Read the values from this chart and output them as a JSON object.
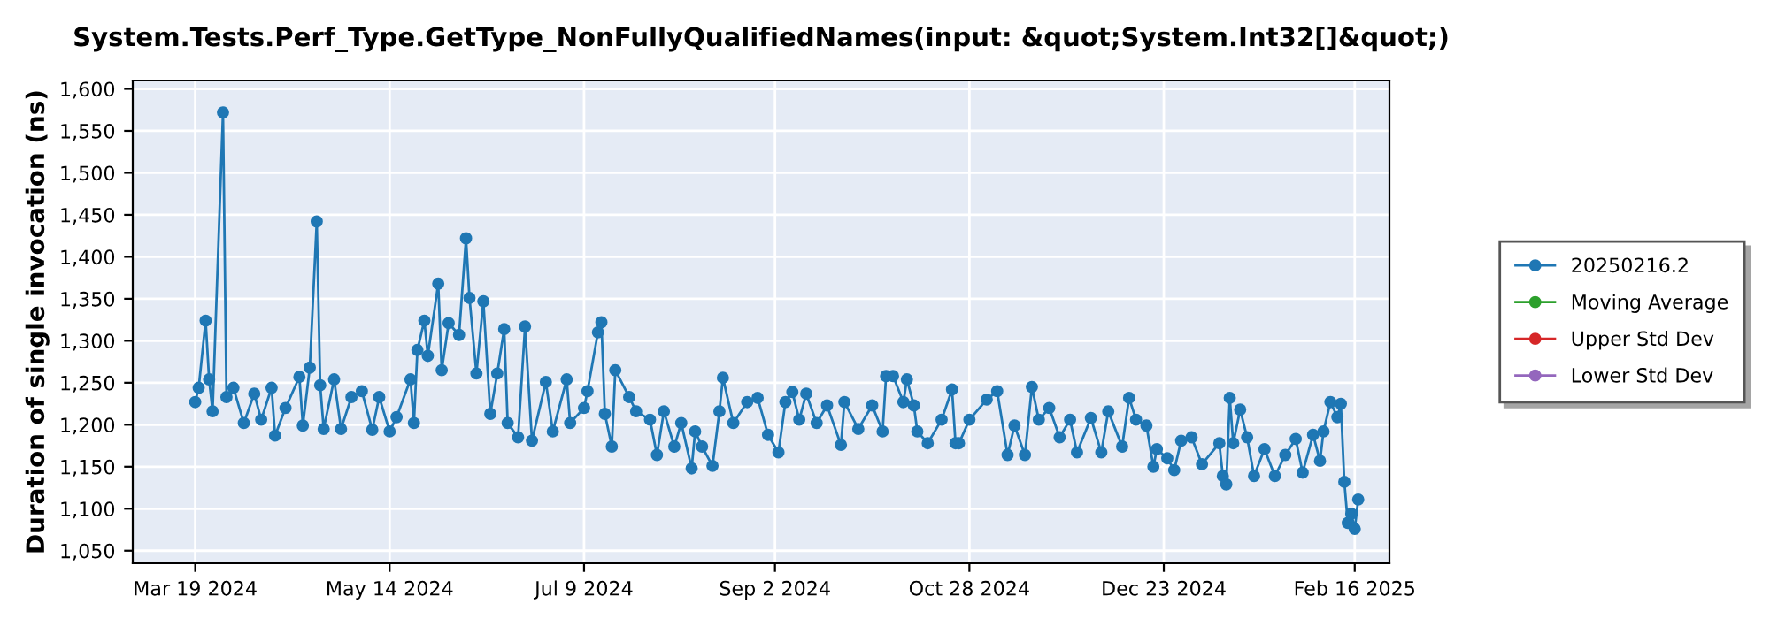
{
  "chart_data": {
    "type": "line",
    "title": "System.Tests.Perf_Type.GetType_NonFullyQualifiedNames(input: &quot;System.Int32[]&quot;)",
    "ylabel": "Duration of single invocation (ns)",
    "x": [
      "2024-03-19",
      "2024-03-20",
      "2024-03-22",
      "2024-03-23",
      "2024-03-24",
      "2024-03-27",
      "2024-03-28",
      "2024-03-30",
      "2024-04-02",
      "2024-04-05",
      "2024-04-07",
      "2024-04-10",
      "2024-04-11",
      "2024-04-14",
      "2024-04-18",
      "2024-04-19",
      "2024-04-21",
      "2024-04-23",
      "2024-04-24",
      "2024-04-25",
      "2024-04-28",
      "2024-04-30",
      "2024-05-03",
      "2024-05-06",
      "2024-05-09",
      "2024-05-11",
      "2024-05-14",
      "2024-05-16",
      "2024-05-20",
      "2024-05-21",
      "2024-05-22",
      "2024-05-24",
      "2024-05-25",
      "2024-05-28",
      "2024-05-29",
      "2024-05-31",
      "2024-06-03",
      "2024-06-05",
      "2024-06-06",
      "2024-06-08",
      "2024-06-10",
      "2024-06-12",
      "2024-06-14",
      "2024-06-16",
      "2024-06-17",
      "2024-06-20",
      "2024-06-22",
      "2024-06-24",
      "2024-06-28",
      "2024-06-30",
      "2024-07-04",
      "2024-07-05",
      "2024-07-09",
      "2024-07-10",
      "2024-07-13",
      "2024-07-14",
      "2024-07-15",
      "2024-07-17",
      "2024-07-18",
      "2024-07-22",
      "2024-07-24",
      "2024-07-28",
      "2024-07-30",
      "2024-08-01",
      "2024-08-04",
      "2024-08-06",
      "2024-08-09",
      "2024-08-10",
      "2024-08-12",
      "2024-08-15",
      "2024-08-17",
      "2024-08-18",
      "2024-08-21",
      "2024-08-25",
      "2024-08-28",
      "2024-08-31",
      "2024-09-03",
      "2024-09-05",
      "2024-09-07",
      "2024-09-09",
      "2024-09-11",
      "2024-09-14",
      "2024-09-17",
      "2024-09-21",
      "2024-09-22",
      "2024-09-26",
      "2024-09-30",
      "2024-10-03",
      "2024-10-04",
      "2024-10-06",
      "2024-10-09",
      "2024-10-10",
      "2024-10-12",
      "2024-10-13",
      "2024-10-16",
      "2024-10-20",
      "2024-10-23",
      "2024-10-24",
      "2024-10-25",
      "2024-10-28",
      "2024-11-02",
      "2024-11-05",
      "2024-11-08",
      "2024-11-10",
      "2024-11-13",
      "2024-11-15",
      "2024-11-17",
      "2024-11-20",
      "2024-11-23",
      "2024-11-26",
      "2024-11-28",
      "2024-12-02",
      "2024-12-05",
      "2024-12-07",
      "2024-12-11",
      "2024-12-13",
      "2024-12-15",
      "2024-12-18",
      "2024-12-20",
      "2024-12-21",
      "2024-12-24",
      "2024-12-26",
      "2024-12-28",
      "2024-12-31",
      "2025-01-03",
      "2025-01-08",
      "2025-01-09",
      "2025-01-10",
      "2025-01-11",
      "2025-01-12",
      "2025-01-14",
      "2025-01-16",
      "2025-01-18",
      "2025-01-21",
      "2025-01-24",
      "2025-01-27",
      "2025-01-30",
      "2025-02-01",
      "2025-02-04",
      "2025-02-06",
      "2025-02-07",
      "2025-02-09",
      "2025-02-11",
      "2025-02-12",
      "2025-02-13",
      "2025-02-14",
      "2025-02-15",
      "2025-02-16",
      "2025-02-17"
    ],
    "series": [
      {
        "name": "20250216.2",
        "color": "#1f77b4",
        "values": [
          1227,
          1244,
          1324,
          1254,
          1216,
          1572,
          1233,
          1244,
          1202,
          1237,
          1206,
          1244,
          1187,
          1220,
          1257,
          1199,
          1268,
          1442,
          1247,
          1195,
          1254,
          1195,
          1233,
          1240,
          1194,
          1233,
          1192,
          1209,
          1254,
          1202,
          1289,
          1324,
          1282,
          1368,
          1265,
          1321,
          1307,
          1422,
          1351,
          1261,
          1347,
          1213,
          1261,
          1314,
          1202,
          1185,
          1317,
          1181,
          1251,
          1192,
          1254,
          1202,
          1220,
          1240,
          1310,
          1322,
          1213,
          1174,
          1265,
          1233,
          1216,
          1206,
          1164,
          1216,
          1174,
          1202,
          1148,
          1192,
          1174,
          1151,
          1216,
          1256,
          1202,
          1227,
          1232,
          1188,
          1167,
          1227,
          1239,
          1206,
          1237,
          1202,
          1223,
          1176,
          1227,
          1195,
          1223,
          1192,
          1258,
          1258,
          1227,
          1254,
          1223,
          1192,
          1178,
          1206,
          1242,
          1178,
          1178,
          1206,
          1230,
          1240,
          1164,
          1199,
          1164,
          1245,
          1206,
          1220,
          1185,
          1206,
          1167,
          1208,
          1167,
          1216,
          1174,
          1232,
          1206,
          1199,
          1150,
          1171,
          1160,
          1146,
          1181,
          1185,
          1153,
          1178,
          1139,
          1129,
          1232,
          1178,
          1218,
          1185,
          1139,
          1171,
          1139,
          1164,
          1183,
          1143,
          1188,
          1157,
          1192,
          1227,
          1209,
          1225,
          1132,
          1083,
          1094,
          1076,
          1111
        ]
      },
      {
        "name": "Moving Average",
        "color": "#2ca02c",
        "values": [
          null,
          null,
          null,
          null,
          null,
          null,
          null,
          null,
          null,
          null,
          null,
          null,
          null,
          null,
          null,
          null,
          null,
          null,
          null,
          null,
          null,
          null,
          null,
          null,
          null,
          null,
          null,
          null,
          null,
          null,
          null,
          null,
          null,
          null,
          null,
          null,
          null,
          null,
          null,
          null,
          null,
          null,
          null,
          null,
          null,
          null,
          null,
          null,
          null,
          null,
          null,
          null,
          null,
          null,
          null,
          null,
          null,
          null,
          null,
          null,
          null,
          null,
          null,
          null,
          null,
          null,
          null,
          null,
          null,
          null,
          null,
          null,
          null,
          null,
          null,
          null,
          null,
          null,
          null,
          null,
          null,
          null,
          null,
          null,
          null,
          null,
          null,
          null,
          null,
          null,
          null,
          null,
          null,
          null,
          null,
          null,
          null,
          null,
          null,
          null,
          null,
          null,
          null,
          null,
          null,
          null,
          null,
          null,
          null,
          null,
          null,
          null,
          null,
          null,
          null,
          null,
          null,
          null,
          null,
          null,
          null,
          null,
          null,
          null,
          null,
          null,
          null,
          null,
          null,
          null,
          null,
          null,
          null,
          null,
          null,
          null,
          null,
          null,
          null,
          null,
          null,
          null,
          null,
          null,
          null,
          null,
          null,
          null,
          null
        ]
      },
      {
        "name": "Upper Std Dev",
        "color": "#d62728",
        "values": [
          null,
          null,
          null,
          null,
          null,
          null,
          null,
          null,
          null,
          null,
          null,
          null,
          null,
          null,
          null,
          null,
          null,
          null,
          null,
          null,
          null,
          null,
          null,
          null,
          null,
          null,
          null,
          null,
          null,
          null,
          null,
          null,
          null,
          null,
          null,
          null,
          null,
          null,
          null,
          null,
          null,
          null,
          null,
          null,
          null,
          null,
          null,
          null,
          null,
          null,
          null,
          null,
          null,
          null,
          null,
          null,
          null,
          null,
          null,
          null,
          null,
          null,
          null,
          null,
          null,
          null,
          null,
          null,
          null,
          null,
          null,
          null,
          null,
          null,
          null,
          null,
          null,
          null,
          null,
          null,
          null,
          null,
          null,
          null,
          null,
          null,
          null,
          null,
          null,
          null,
          null,
          null,
          null,
          null,
          null,
          null,
          null,
          null,
          null,
          null,
          null,
          null,
          null,
          null,
          null,
          null,
          null,
          null,
          null,
          null,
          null,
          null,
          null,
          null,
          null,
          null,
          null,
          null,
          null,
          null,
          null,
          null,
          null,
          null,
          null,
          null,
          null,
          null,
          null,
          null,
          null,
          null,
          null,
          null,
          null,
          null,
          null,
          null,
          null,
          null,
          null,
          null,
          null,
          null,
          null,
          null,
          null,
          null,
          null
        ]
      },
      {
        "name": "Lower Std Dev",
        "color": "#9467bd",
        "values": [
          null,
          null,
          null,
          null,
          null,
          null,
          null,
          null,
          null,
          null,
          null,
          null,
          null,
          null,
          null,
          null,
          null,
          null,
          null,
          null,
          null,
          null,
          null,
          null,
          null,
          null,
          null,
          null,
          null,
          null,
          null,
          null,
          null,
          null,
          null,
          null,
          null,
          null,
          null,
          null,
          null,
          null,
          null,
          null,
          null,
          null,
          null,
          null,
          null,
          null,
          null,
          null,
          null,
          null,
          null,
          null,
          null,
          null,
          null,
          null,
          null,
          null,
          null,
          null,
          null,
          null,
          null,
          null,
          null,
          null,
          null,
          null,
          null,
          null,
          null,
          null,
          null,
          null,
          null,
          null,
          null,
          null,
          null,
          null,
          null,
          null,
          null,
          null,
          null,
          null,
          null,
          null,
          null,
          null,
          null,
          null,
          null,
          null,
          null,
          null,
          null,
          null,
          null,
          null,
          null,
          null,
          null,
          null,
          null,
          null,
          null,
          null,
          null,
          null,
          null,
          null,
          null,
          null,
          null,
          null,
          null,
          null,
          null,
          null,
          null,
          null,
          null,
          null,
          null,
          null,
          null,
          null,
          null,
          null,
          null,
          null,
          null,
          null,
          null,
          null,
          null,
          null,
          null,
          null,
          null,
          null,
          null,
          null,
          null
        ]
      }
    ],
    "xlim": [
      "2024-03-01",
      "2025-02-26"
    ],
    "xticks": [
      {
        "value": "2024-03-19",
        "label": "Mar 19 2024"
      },
      {
        "value": "2024-05-14",
        "label": "May 14 2024"
      },
      {
        "value": "2024-07-09",
        "label": "Jul 9 2024"
      },
      {
        "value": "2024-09-02",
        "label": "Sep 2 2024"
      },
      {
        "value": "2024-10-28",
        "label": "Oct 28 2024"
      },
      {
        "value": "2024-12-23",
        "label": "Dec 23 2024"
      },
      {
        "value": "2025-02-16",
        "label": "Feb 16 2025"
      }
    ],
    "ylim": [
      1035,
      1610
    ],
    "yticks": [
      {
        "value": 1050,
        "label": "1,050"
      },
      {
        "value": 1100,
        "label": "1,100"
      },
      {
        "value": 1150,
        "label": "1,150"
      },
      {
        "value": 1200,
        "label": "1,200"
      },
      {
        "value": 1250,
        "label": "1,250"
      },
      {
        "value": 1300,
        "label": "1,300"
      },
      {
        "value": 1350,
        "label": "1,350"
      },
      {
        "value": 1400,
        "label": "1,400"
      },
      {
        "value": 1450,
        "label": "1,450"
      },
      {
        "value": 1500,
        "label": "1,500"
      },
      {
        "value": 1550,
        "label": "1,550"
      },
      {
        "value": 1600,
        "label": "1,600"
      }
    ],
    "grid": true,
    "legend": "right",
    "marker": "circle",
    "line_style": "solid"
  }
}
